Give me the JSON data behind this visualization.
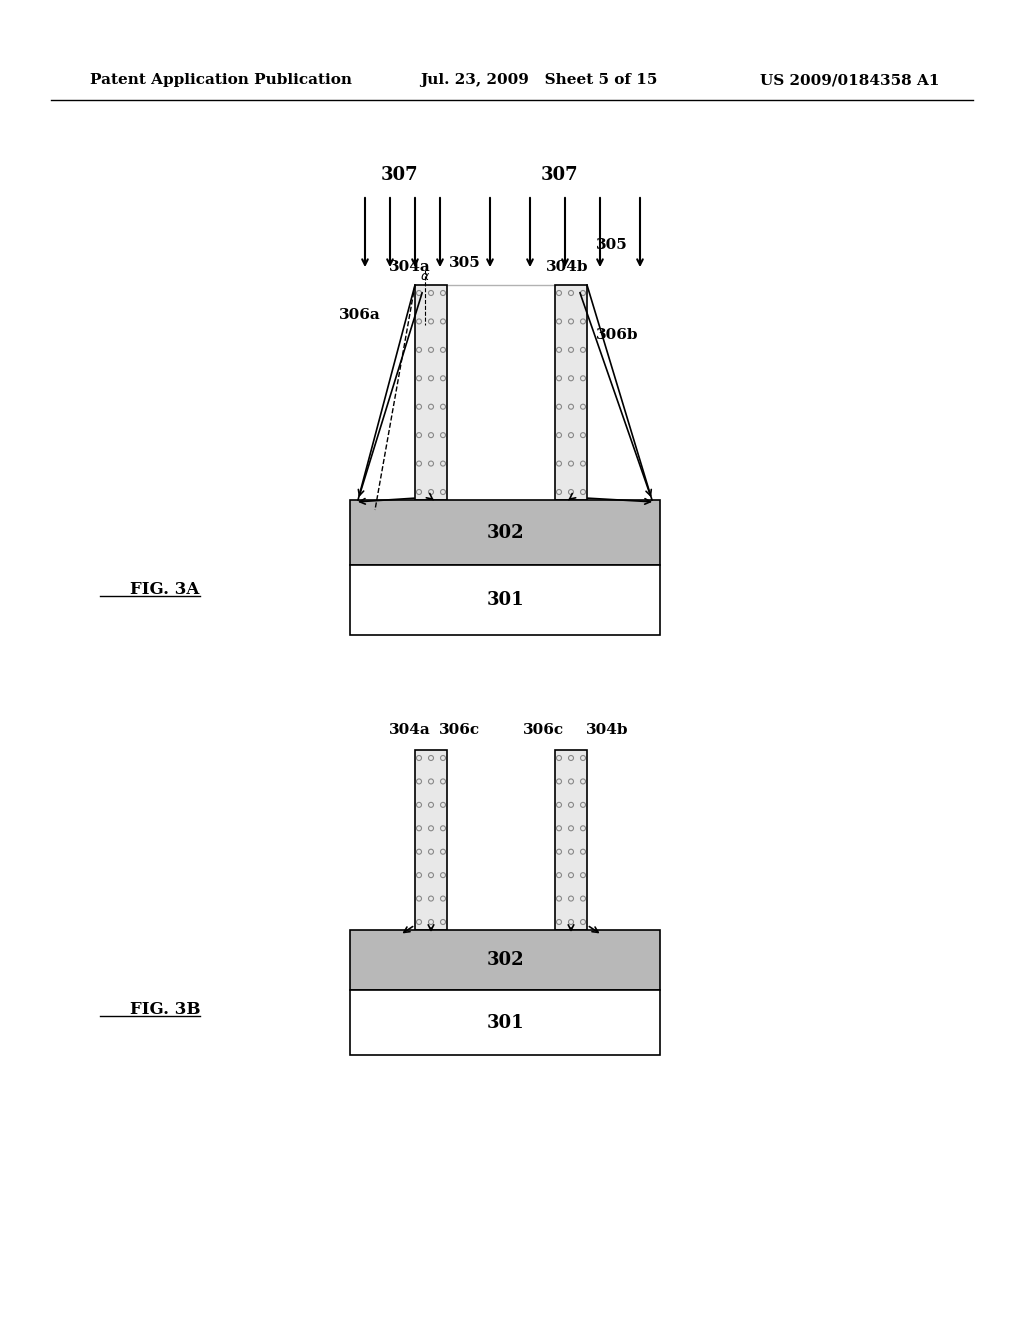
{
  "header_left": "Patent Application Publication",
  "header_mid": "Jul. 23, 2009   Sheet 5 of 15",
  "header_right": "US 2009/0184358 A1",
  "fig_a_label": "FIG. 3A",
  "fig_b_label": "FIG. 3B",
  "background_color": "#ffffff",
  "layer_color_302": "#c8c8c8",
  "layer_color_301": "#ffffff",
  "pillar_color": "#d0d0d0",
  "pillar_dot_color": "#888888",
  "text_color": "#000000"
}
